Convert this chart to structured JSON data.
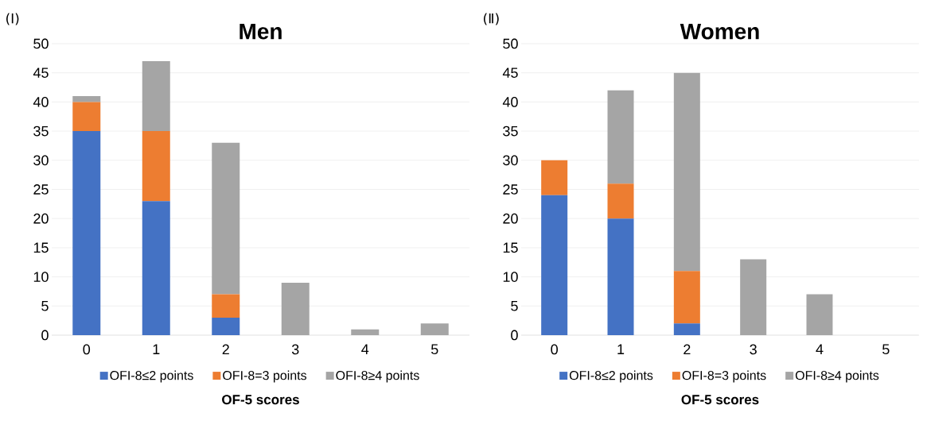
{
  "chart_data": [
    {
      "type": "bar",
      "title": "Men",
      "xlabel": "OF-5 scores",
      "annotations": [
        "(Ⅰ)"
      ],
      "categories": [
        "0",
        "1",
        "2",
        "3",
        "4",
        "5"
      ],
      "stacked": true,
      "ylim": [
        0,
        50
      ],
      "yticks": [
        0,
        5,
        10,
        15,
        20,
        25,
        30,
        35,
        40,
        45,
        50
      ],
      "grid": "y",
      "legend": "bottom",
      "series": [
        {
          "name": "OFI-8≤2 points",
          "color": "#4472c4",
          "values": [
            35,
            23,
            3,
            0,
            0,
            0
          ]
        },
        {
          "name": "OFI-8=3 points",
          "color": "#ed7d31",
          "values": [
            5,
            12,
            4,
            0,
            0,
            0
          ]
        },
        {
          "name": "OFI-8≥4 points",
          "color": "#a5a5a5",
          "values": [
            1,
            12,
            26,
            9,
            1,
            2
          ]
        }
      ]
    },
    {
      "type": "bar",
      "title": "Women",
      "xlabel": "OF-5 scores",
      "annotations": [
        "(Ⅱ)"
      ],
      "categories": [
        "0",
        "1",
        "2",
        "3",
        "4",
        "5"
      ],
      "stacked": true,
      "ylim": [
        0,
        50
      ],
      "yticks": [
        0,
        5,
        10,
        15,
        20,
        25,
        30,
        35,
        40,
        45,
        50
      ],
      "grid": "y",
      "legend": "bottom",
      "series": [
        {
          "name": "OFI-8≤2 points",
          "color": "#4472c4",
          "values": [
            24,
            20,
            2,
            0,
            0,
            0
          ]
        },
        {
          "name": "OFI-8=3 points",
          "color": "#ed7d31",
          "values": [
            6,
            6,
            9,
            0,
            0,
            0
          ]
        },
        {
          "name": "OFI-8≥4 points",
          "color": "#a5a5a5",
          "values": [
            0,
            16,
            34,
            13,
            7,
            0
          ]
        }
      ]
    }
  ]
}
